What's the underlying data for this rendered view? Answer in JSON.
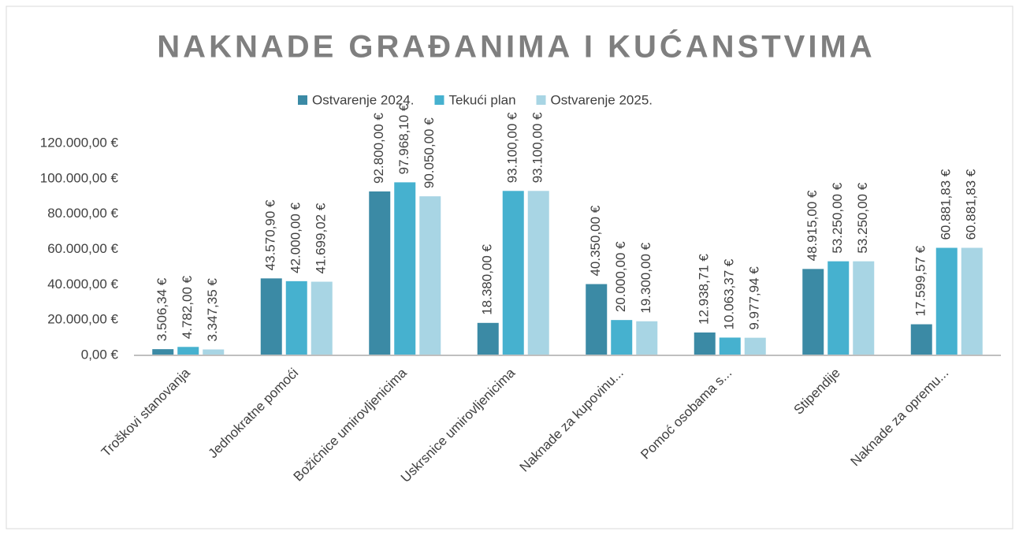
{
  "chart_data": {
    "type": "bar",
    "title": "NAKNADE GRAĐANIMA I KUĆANSTVIMA",
    "categories": [
      "Troškovi stanovanja",
      "Jednokratne pomoći",
      "Božićnice umirovljenicima",
      "Uskrsnice umirovljenicima",
      "Naknade za kupovinu...",
      "Pomoć osobama s...",
      "Stipendije",
      "Naknade za opremu..."
    ],
    "series": [
      {
        "name": "Ostvarenje 2024.",
        "color": "#3b8aa5",
        "values": [
          3506.34,
          43570.9,
          92800.0,
          18380.0,
          40350.0,
          12938.71,
          48915.0,
          17599.57
        ],
        "value_labels": [
          "3.506,34 €",
          "43.570,90 €",
          "92.800,00 €",
          "18.380,00 €",
          "40.350,00 €",
          "12.938,71 €",
          "48.915,00 €",
          "17.599,57 €"
        ]
      },
      {
        "name": "Tekući plan",
        "color": "#46b1cf",
        "values": [
          4782.0,
          42000.0,
          97968.1,
          93100.0,
          20000.0,
          10063.37,
          53250.0,
          60881.83
        ],
        "value_labels": [
          "4.782,00 €",
          "42.000,00 €",
          "97.968,10 €",
          "93.100,00 €",
          "20.000,00 €",
          "10.063,37 €",
          "53.250,00 €",
          "60.881,83 €"
        ]
      },
      {
        "name": "Ostvarenje 2025.",
        "color": "#a8d5e4",
        "values": [
          3347.35,
          41699.02,
          90050.0,
          93100.0,
          19300.0,
          9977.94,
          53250.0,
          60881.83
        ],
        "value_labels": [
          "3.347,35 €",
          "41.699,02 €",
          "90.050,00 €",
          "93.100,00 €",
          "19.300,00 €",
          "9.977,94 €",
          "53.250,00 €",
          "60.881,83 €"
        ]
      }
    ],
    "ylim": [
      0,
      120000
    ],
    "yticks": [
      {
        "value": 0,
        "label": "0,00 €"
      },
      {
        "value": 20000,
        "label": "20.000,00 €"
      },
      {
        "value": 40000,
        "label": "40.000,00 €"
      },
      {
        "value": 60000,
        "label": "60.000,00 €"
      },
      {
        "value": 80000,
        "label": "80.000,00 €"
      },
      {
        "value": 100000,
        "label": "100.000,00 €"
      },
      {
        "value": 120000,
        "label": "120.000,00 €"
      }
    ],
    "grid": false,
    "legend": "top"
  }
}
